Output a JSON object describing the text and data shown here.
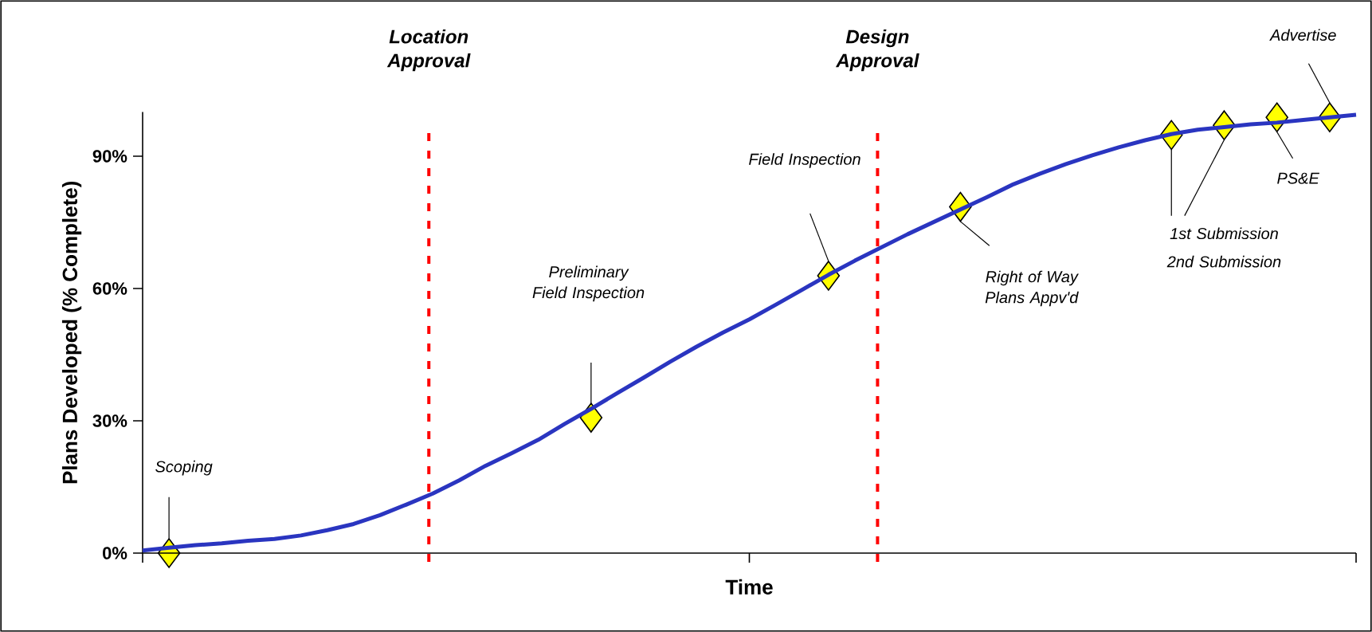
{
  "chart_data": {
    "type": "line",
    "xlabel": "Time",
    "ylabel": "Plans Developed (% Complete)",
    "categories": [
      null,
      null,
      null,
      null,
      null,
      null,
      null,
      null,
      null,
      null,
      null,
      null,
      null,
      null,
      null,
      null,
      null,
      null,
      null,
      null,
      null,
      null,
      null,
      null,
      null,
      null,
      null,
      null,
      null,
      null,
      null,
      null,
      null,
      null,
      null,
      null,
      null,
      null,
      null,
      null,
      null,
      null,
      null,
      null,
      null,
      null,
      null
    ],
    "series": [
      {
        "color": "#2a35c0",
        "line_style": "solid",
        "marker": "none",
        "values": [
          0.6,
          1.2,
          1.8,
          2.2,
          2.8,
          3.2,
          4.0,
          5.2,
          6.6,
          8.6,
          11,
          13.5,
          16.5,
          19.8,
          22.7,
          25.7,
          29.3,
          32.7,
          36.3,
          39.8,
          43.4,
          46.8,
          50,
          53,
          56.3,
          59.7,
          63.1,
          66.3,
          69.3,
          72.3,
          75.1,
          77.9,
          80.7,
          83.6,
          86,
          88.2,
          90.2,
          92,
          93.6,
          95,
          96,
          96.6,
          97.2,
          97.6,
          98.2,
          98.8,
          99.4
        ]
      },
      {
        "type": "scatter",
        "color": "#ffff00",
        "marker": "diamond",
        "values": [
          null,
          0,
          null,
          null,
          null,
          null,
          null,
          null,
          null,
          null,
          null,
          null,
          null,
          null,
          null,
          null,
          null,
          30.7,
          null,
          null,
          null,
          null,
          null,
          null,
          null,
          null,
          62.9,
          null,
          null,
          null,
          null,
          78.5,
          null,
          null,
          null,
          null,
          null,
          null,
          null,
          94.8,
          null,
          97,
          null,
          98.8,
          null,
          98.8,
          null
        ]
      }
    ],
    "ylim": [
      0,
      100
    ],
    "yticks": [
      {
        "value": 0,
        "label": "0%"
      },
      {
        "value": 30,
        "label": "30%"
      },
      {
        "value": 60,
        "label": "60%"
      },
      {
        "value": 90,
        "label": "90%"
      }
    ],
    "tick_labels": "y",
    "grid": false,
    "annotations": [
      "Location Approval",
      "Design Approval",
      "Scoping",
      "Preliminary Field Inspection",
      "Field Inspection",
      "Right of Way Plans Appv'd",
      "1st Submission",
      "2nd Submission",
      "PS&E",
      "Advertise"
    ]
  }
}
